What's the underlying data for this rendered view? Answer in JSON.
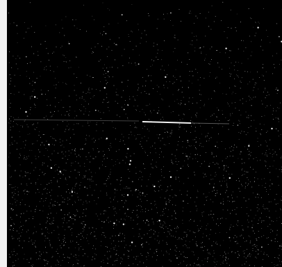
{
  "image": {
    "description_free": true,
    "background_color": "#000000",
    "left_border_color": "#f2f2f2",
    "star_color": "#ffffff",
    "streak_color": "#ffffff"
  }
}
